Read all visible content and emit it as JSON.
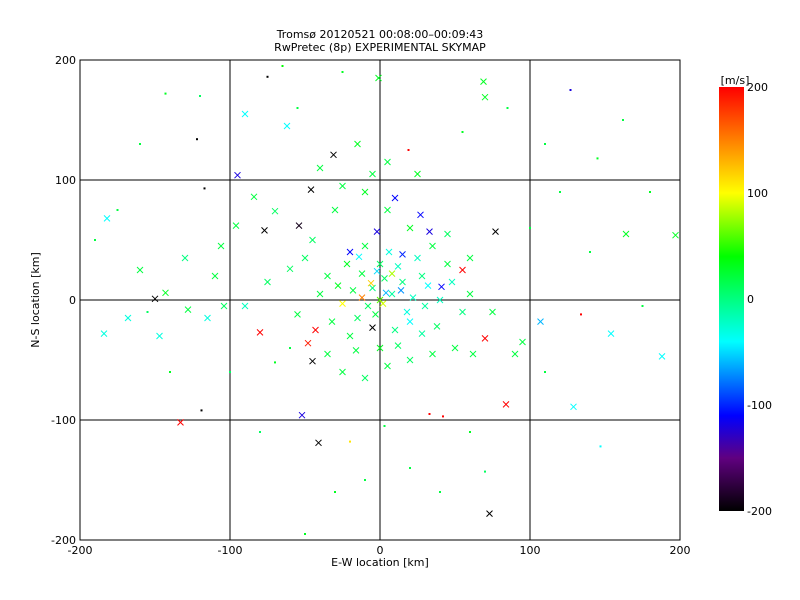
{
  "chart_data": {
    "type": "scatter",
    "title": "Tromsø 20120521 00:08:00–00:09:43",
    "subtitle": "RwPretec (8p) EXPERIMENTAL SKYMAP",
    "xlabel": "E-W location [km]",
    "ylabel": "N-S location [km]",
    "xlim": [
      -200,
      200
    ],
    "ylim": [
      -200,
      200
    ],
    "xticks": [
      "-200",
      "-100",
      "0",
      "100",
      "200"
    ],
    "yticks": [
      "-200",
      "-100",
      "0",
      "100",
      "200"
    ],
    "xtick_values": [
      -200,
      -100,
      0,
      100,
      200
    ],
    "ytick_values": [
      -200,
      -100,
      0,
      100,
      200
    ],
    "grid": true,
    "colorbar": {
      "label": "[m/s]",
      "range": [
        -200,
        200
      ],
      "ticks": [
        "200",
        "100",
        "0",
        "-100",
        "-200"
      ],
      "tick_values": [
        200,
        100,
        0,
        -100,
        -200
      ],
      "stops": [
        {
          "v": -200,
          "color": "#000000"
        },
        {
          "v": -150,
          "color": "#600080"
        },
        {
          "v": -110,
          "color": "#0000ff"
        },
        {
          "v": -40,
          "color": "#00ffff"
        },
        {
          "v": 0,
          "color": "#00ff80"
        },
        {
          "v": 40,
          "color": "#00ff00"
        },
        {
          "v": 100,
          "color": "#ffff00"
        },
        {
          "v": 150,
          "color": "#ff8000"
        },
        {
          "v": 200,
          "color": "#ff0000"
        }
      ]
    },
    "point_fields": [
      "x_km",
      "y_km",
      "velocity_ms",
      "marker"
    ],
    "points": [
      [
        -31,
        121,
        -200,
        "x"
      ],
      [
        -46,
        92,
        -200,
        "x"
      ],
      [
        77,
        57,
        -200,
        "x"
      ],
      [
        -77,
        58,
        -200,
        "x"
      ],
      [
        -54,
        62,
        -190,
        "x"
      ],
      [
        -150,
        1,
        -200,
        "x"
      ],
      [
        -5,
        -23,
        -200,
        "x"
      ],
      [
        -45,
        -51,
        -200,
        "x"
      ],
      [
        -41,
        -119,
        -200,
        "x"
      ],
      [
        73,
        -178,
        -200,
        "x"
      ],
      [
        -119,
        -92,
        -200,
        "."
      ],
      [
        -117,
        93,
        -200,
        "."
      ],
      [
        -122,
        134,
        -200,
        "."
      ],
      [
        -75,
        186,
        -200,
        "."
      ],
      [
        -133,
        -102,
        200,
        "x"
      ],
      [
        84,
        -87,
        200,
        "x"
      ],
      [
        -80,
        -27,
        200,
        "x"
      ],
      [
        -43,
        -25,
        200,
        "x"
      ],
      [
        -48,
        -36,
        190,
        "x"
      ],
      [
        55,
        25,
        200,
        "x"
      ],
      [
        70,
        -32,
        200,
        "x"
      ],
      [
        33,
        -95,
        200,
        "."
      ],
      [
        42,
        -97,
        200,
        "."
      ],
      [
        134,
        -12,
        200,
        "."
      ],
      [
        19,
        125,
        200,
        "."
      ],
      [
        -52,
        -96,
        -120,
        "x"
      ],
      [
        -95,
        104,
        -120,
        "x"
      ],
      [
        127,
        175,
        -120,
        "."
      ],
      [
        41,
        11,
        -110,
        "x"
      ],
      [
        27,
        71,
        -110,
        "x"
      ],
      [
        33,
        57,
        -120,
        "x"
      ],
      [
        10,
        85,
        -110,
        "x"
      ],
      [
        -2,
        57,
        -120,
        "x"
      ],
      [
        -20,
        40,
        -110,
        "x"
      ],
      [
        15,
        38,
        -100,
        "x"
      ],
      [
        129,
        -89,
        -40,
        "x"
      ],
      [
        154,
        -28,
        -40,
        "x"
      ],
      [
        188,
        -47,
        -40,
        "x"
      ],
      [
        147,
        -122,
        -40,
        "."
      ],
      [
        -182,
        68,
        -40,
        "x"
      ],
      [
        -184,
        -28,
        -30,
        "x"
      ],
      [
        -168,
        -15,
        -30,
        "x"
      ],
      [
        -147,
        -30,
        -30,
        "x"
      ],
      [
        -90,
        155,
        -40,
        "x"
      ],
      [
        -62,
        145,
        -40,
        "x"
      ],
      [
        107,
        -18,
        -60,
        "x"
      ],
      [
        197,
        54,
        30,
        "x"
      ],
      [
        164,
        55,
        30,
        "x"
      ],
      [
        69,
        182,
        30,
        "x"
      ],
      [
        70,
        169,
        30,
        "x"
      ],
      [
        -1,
        185,
        30,
        "x"
      ],
      [
        -143,
        6,
        30,
        "x"
      ],
      [
        -128,
        -8,
        20,
        "x"
      ],
      [
        -110,
        20,
        20,
        "x"
      ],
      [
        -104,
        -5,
        10,
        "x"
      ],
      [
        -96,
        62,
        20,
        "x"
      ],
      [
        -106,
        45,
        20,
        "x"
      ],
      [
        -84,
        86,
        20,
        "x"
      ],
      [
        -70,
        74,
        10,
        "x"
      ],
      [
        -60,
        26,
        10,
        "x"
      ],
      [
        -55,
        -12,
        20,
        "x"
      ],
      [
        -35,
        -45,
        20,
        "x"
      ],
      [
        -25,
        -60,
        20,
        "x"
      ],
      [
        -10,
        -65,
        10,
        "x"
      ],
      [
        5,
        -55,
        20,
        "x"
      ],
      [
        20,
        -50,
        10,
        "x"
      ],
      [
        35,
        -45,
        20,
        "x"
      ],
      [
        50,
        -40,
        20,
        "x"
      ],
      [
        62,
        -45,
        20,
        "x"
      ],
      [
        90,
        -45,
        20,
        "x"
      ],
      [
        95,
        -35,
        20,
        "x"
      ],
      [
        75,
        -10,
        20,
        "x"
      ],
      [
        60,
        5,
        20,
        "x"
      ],
      [
        45,
        30,
        20,
        "x"
      ],
      [
        35,
        45,
        20,
        "x"
      ],
      [
        20,
        60,
        30,
        "x"
      ],
      [
        5,
        75,
        20,
        "x"
      ],
      [
        -10,
        90,
        30,
        "x"
      ],
      [
        -25,
        95,
        20,
        "x"
      ],
      [
        -40,
        110,
        20,
        "x"
      ],
      [
        -15,
        130,
        30,
        "x"
      ],
      [
        5,
        115,
        20,
        "x"
      ],
      [
        25,
        105,
        30,
        "x"
      ],
      [
        -5,
        105,
        20,
        "x"
      ],
      [
        -30,
        75,
        20,
        "x"
      ],
      [
        -45,
        50,
        10,
        "x"
      ],
      [
        -5,
        10,
        0,
        "x"
      ],
      [
        3,
        18,
        10,
        "x"
      ],
      [
        -12,
        22,
        20,
        "x"
      ],
      [
        8,
        5,
        -10,
        "x"
      ],
      [
        15,
        15,
        0,
        "x"
      ],
      [
        -8,
        -5,
        10,
        "x"
      ],
      [
        22,
        2,
        -20,
        "x"
      ],
      [
        -18,
        8,
        20,
        "x"
      ],
      [
        0,
        30,
        10,
        "x"
      ],
      [
        12,
        28,
        -20,
        "x"
      ],
      [
        -22,
        30,
        30,
        "x"
      ],
      [
        28,
        20,
        0,
        "x"
      ],
      [
        -3,
        -12,
        20,
        "x"
      ],
      [
        18,
        -10,
        -30,
        "x"
      ],
      [
        -15,
        -15,
        10,
        "x"
      ],
      [
        30,
        -5,
        -10,
        "x"
      ],
      [
        -28,
        12,
        30,
        "x"
      ],
      [
        6,
        40,
        -30,
        "x"
      ],
      [
        -10,
        45,
        20,
        "x"
      ],
      [
        25,
        35,
        -20,
        "x"
      ],
      [
        40,
        0,
        -20,
        "x"
      ],
      [
        -35,
        20,
        20,
        "x"
      ],
      [
        10,
        -25,
        0,
        "x"
      ],
      [
        -20,
        -30,
        20,
        "x"
      ],
      [
        0,
        0,
        60,
        "x"
      ],
      [
        -6,
        14,
        120,
        "x"
      ],
      [
        2,
        -3,
        90,
        "x"
      ],
      [
        -12,
        2,
        150,
        "x"
      ],
      [
        8,
        22,
        80,
        "x"
      ],
      [
        -25,
        -3,
        100,
        "x"
      ],
      [
        4,
        6,
        -60,
        "x"
      ],
      [
        14,
        8,
        -70,
        "x"
      ],
      [
        -2,
        24,
        -50,
        "x"
      ],
      [
        20,
        -18,
        -40,
        "x"
      ],
      [
        32,
        12,
        -40,
        "x"
      ],
      [
        -14,
        36,
        -40,
        "x"
      ],
      [
        48,
        15,
        -20,
        "x"
      ],
      [
        55,
        -10,
        0,
        "x"
      ],
      [
        -40,
        5,
        20,
        "x"
      ],
      [
        -50,
        35,
        10,
        "x"
      ],
      [
        45,
        55,
        10,
        "x"
      ],
      [
        60,
        35,
        20,
        "x"
      ],
      [
        -16,
        -42,
        20,
        "x"
      ],
      [
        0,
        -40,
        30,
        "x"
      ],
      [
        12,
        -38,
        10,
        "x"
      ],
      [
        28,
        -28,
        -10,
        "x"
      ],
      [
        -32,
        -18,
        20,
        "x"
      ],
      [
        38,
        -22,
        10,
        "x"
      ],
      [
        -90,
        -5,
        -20,
        "x"
      ],
      [
        -115,
        -15,
        -30,
        "x"
      ],
      [
        -75,
        15,
        10,
        "x"
      ],
      [
        -130,
        35,
        0,
        "x"
      ],
      [
        -160,
        25,
        20,
        "x"
      ],
      [
        -155,
        -10,
        10,
        "."
      ],
      [
        -120,
        170,
        10,
        "."
      ],
      [
        -143,
        172,
        30,
        "."
      ],
      [
        -160,
        130,
        20,
        "."
      ],
      [
        -65,
        195,
        40,
        "."
      ],
      [
        -55,
        160,
        20,
        "."
      ],
      [
        -25,
        190,
        30,
        "."
      ],
      [
        55,
        140,
        30,
        "."
      ],
      [
        85,
        160,
        20,
        "."
      ],
      [
        110,
        130,
        20,
        "."
      ],
      [
        145,
        118,
        30,
        "."
      ],
      [
        162,
        150,
        20,
        "."
      ],
      [
        180,
        90,
        30,
        "."
      ],
      [
        120,
        90,
        20,
        "."
      ],
      [
        100,
        60,
        20,
        "."
      ],
      [
        140,
        40,
        20,
        "."
      ],
      [
        175,
        -5,
        20,
        "."
      ],
      [
        110,
        -60,
        20,
        "."
      ],
      [
        60,
        -110,
        30,
        "."
      ],
      [
        20,
        -140,
        20,
        "."
      ],
      [
        -10,
        -150,
        20,
        "."
      ],
      [
        -30,
        -160,
        30,
        "."
      ],
      [
        -50,
        -195,
        30,
        "."
      ],
      [
        40,
        -160,
        20,
        "."
      ],
      [
        70,
        -143,
        10,
        "."
      ],
      [
        -80,
        -110,
        10,
        "."
      ],
      [
        -100,
        -60,
        10,
        "."
      ],
      [
        -140,
        -60,
        30,
        "."
      ],
      [
        -175,
        75,
        20,
        "."
      ],
      [
        -190,
        50,
        20,
        "."
      ],
      [
        3,
        -105,
        20,
        "."
      ],
      [
        -20,
        -118,
        110,
        "."
      ],
      [
        -60,
        -40,
        20,
        "."
      ],
      [
        -70,
        -52,
        30,
        "."
      ]
    ]
  }
}
